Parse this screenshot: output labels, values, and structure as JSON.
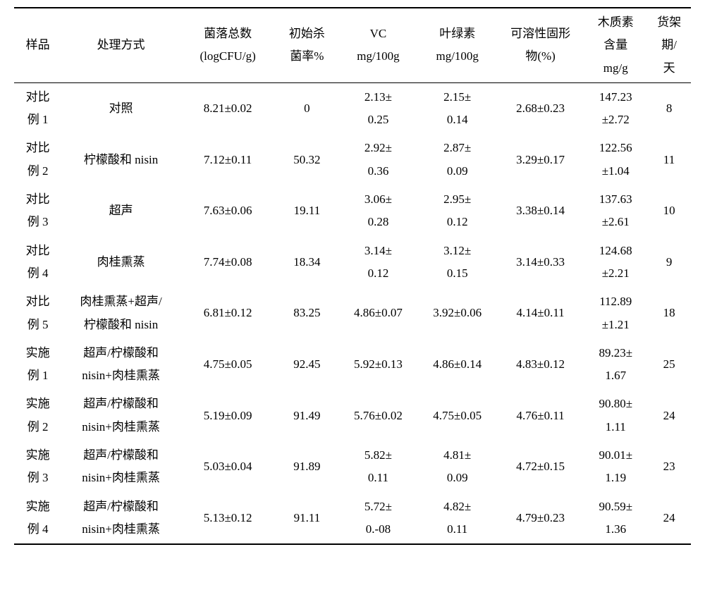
{
  "headers": {
    "sample": "样品",
    "treatment": "处理方式",
    "colony_l1": "菌落总数",
    "colony_l2": "(logCFU/g)",
    "kill_l1": "初始杀",
    "kill_l2": "菌率%",
    "vc_l1": "VC",
    "vc_l2": "mg/100g",
    "chl_l1": "叶绿素",
    "chl_l2": "mg/100g",
    "solid_l1": "可溶性固形",
    "solid_l2": "物(%)",
    "lignin_l1": "木质素",
    "lignin_l2": "含量",
    "lignin_l3": "mg/g",
    "shelf_l1": "货架",
    "shelf_l2": "期/",
    "shelf_l3": "天"
  },
  "rows": [
    {
      "sample_l1": "对比",
      "sample_l2": "例 1",
      "treat_l1": "对照",
      "treat_l2": "",
      "colony": "8.21±0.02",
      "kill": "0",
      "vc_l1": "2.13±",
      "vc_l2": "0.25",
      "chl_l1": "2.15±",
      "chl_l2": "0.14",
      "solid": "2.68±0.23",
      "lignin_l1": "147.23",
      "lignin_l2": "±2.72",
      "shelf": "8"
    },
    {
      "sample_l1": "对比",
      "sample_l2": "例 2",
      "treat_l1": "柠檬酸和 nisin",
      "treat_l2": "",
      "colony": "7.12±0.11",
      "kill": "50.32",
      "vc_l1": "2.92±",
      "vc_l2": "0.36",
      "chl_l1": "2.87±",
      "chl_l2": "0.09",
      "solid": "3.29±0.17",
      "lignin_l1": "122.56",
      "lignin_l2": "±1.04",
      "shelf": "11"
    },
    {
      "sample_l1": "对比",
      "sample_l2": "例 3",
      "treat_l1": "超声",
      "treat_l2": "",
      "colony": "7.63±0.06",
      "kill": "19.11",
      "vc_l1": "3.06±",
      "vc_l2": "0.28",
      "chl_l1": "2.95±",
      "chl_l2": "0.12",
      "solid": "3.38±0.14",
      "lignin_l1": "137.63",
      "lignin_l2": "±2.61",
      "shelf": "10"
    },
    {
      "sample_l1": "对比",
      "sample_l2": "例 4",
      "treat_l1": "肉桂熏蒸",
      "treat_l2": "",
      "colony": "7.74±0.08",
      "kill": "18.34",
      "vc_l1": "3.14±",
      "vc_l2": "0.12",
      "chl_l1": "3.12±",
      "chl_l2": "0.15",
      "solid": "3.14±0.33",
      "lignin_l1": "124.68",
      "lignin_l2": "±2.21",
      "shelf": "9"
    },
    {
      "sample_l1": "对比",
      "sample_l2": "例 5",
      "treat_l1": "肉桂熏蒸+超声/",
      "treat_l2": "柠檬酸和 nisin",
      "colony": "6.81±0.12",
      "kill": "83.25",
      "vc_l1": "4.86±0.07",
      "vc_l2": "",
      "chl_l1": "3.92±0.06",
      "chl_l2": "",
      "solid": "4.14±0.11",
      "lignin_l1": "112.89",
      "lignin_l2": "±1.21",
      "shelf": "18"
    },
    {
      "sample_l1": "实施",
      "sample_l2": "例 1",
      "treat_l1": "超声/柠檬酸和",
      "treat_l2": "nisin+肉桂熏蒸",
      "colony": "4.75±0.05",
      "kill": "92.45",
      "vc_l1": "5.92±0.13",
      "vc_l2": "",
      "chl_l1": "4.86±0.14",
      "chl_l2": "",
      "solid": "4.83±0.12",
      "lignin_l1": "89.23±",
      "lignin_l2": "1.67",
      "shelf": "25"
    },
    {
      "sample_l1": "实施",
      "sample_l2": "例 2",
      "treat_l1": "超声/柠檬酸和",
      "treat_l2": "nisin+肉桂熏蒸",
      "colony": "5.19±0.09",
      "kill": "91.49",
      "vc_l1": "5.76±0.02",
      "vc_l2": "",
      "chl_l1": "4.75±0.05",
      "chl_l2": "",
      "solid": "4.76±0.11",
      "lignin_l1": "90.80±",
      "lignin_l2": "1.11",
      "shelf": "24"
    },
    {
      "sample_l1": "实施",
      "sample_l2": "例 3",
      "treat_l1": "超声/柠檬酸和",
      "treat_l2": "nisin+肉桂熏蒸",
      "colony": "5.03±0.04",
      "kill": "91.89",
      "vc_l1": "5.82±",
      "vc_l2": "0.11",
      "chl_l1": "4.81±",
      "chl_l2": "0.09",
      "solid": "4.72±0.15",
      "lignin_l1": "90.01±",
      "lignin_l2": "1.19",
      "shelf": "23"
    },
    {
      "sample_l1": "实施",
      "sample_l2": "例 4",
      "treat_l1": "超声/柠檬酸和",
      "treat_l2": "nisin+肉桂熏蒸",
      "colony": "5.13±0.12",
      "kill": "91.11",
      "vc_l1": "5.72±",
      "vc_l2": "0.-08",
      "chl_l1": "4.82±",
      "chl_l2": "0.11",
      "solid": "4.79±0.23",
      "lignin_l1": "90.59±",
      "lignin_l2": "1.36",
      "shelf": "24"
    }
  ]
}
